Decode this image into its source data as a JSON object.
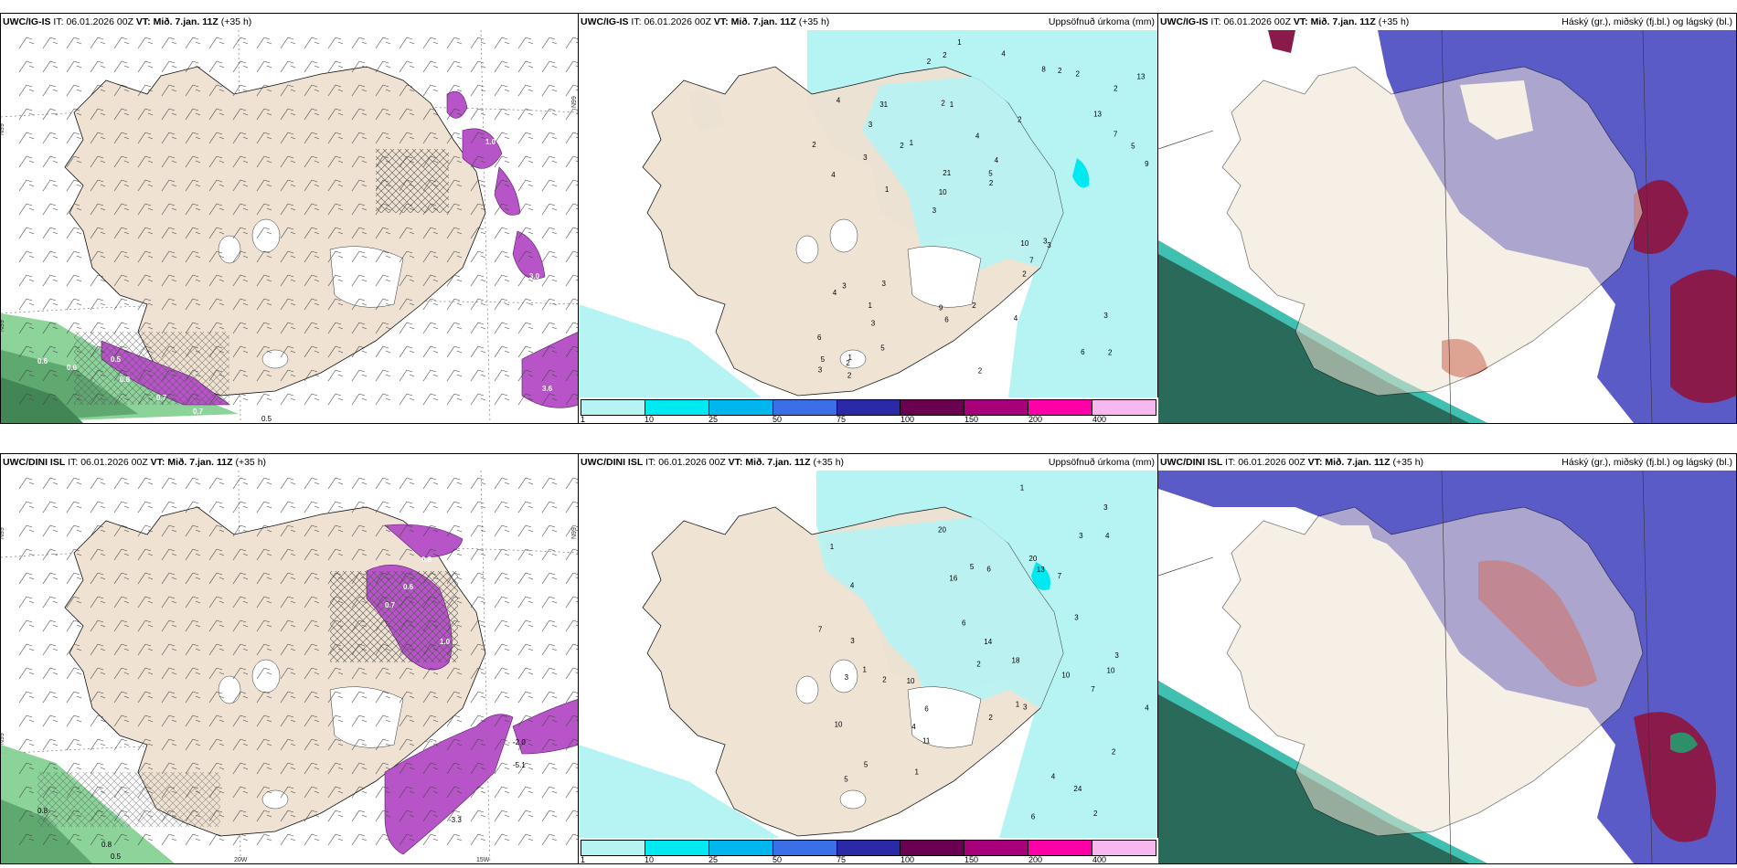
{
  "panels": [
    {
      "model": "UWC/IG-IS",
      "it_label": "IT:",
      "it": "06.01.2026 00Z",
      "vt_label": "VT:",
      "vt": "Mið. 7.jan. 11Z",
      "lead": "(+35 h)",
      "right": ""
    },
    {
      "model": "UWC/IG-IS",
      "it_label": "IT:",
      "it": "06.01.2026 00Z",
      "vt_label": "VT:",
      "vt": "Mið. 7.jan. 11Z",
      "lead": "(+35 h)",
      "right": "Uppsöfnuð úrkoma (mm)"
    },
    {
      "model": "UWC/IG-IS",
      "it_label": "IT:",
      "it": "06.01.2026 00Z",
      "vt_label": "VT:",
      "vt": "Mið. 7.jan. 11Z",
      "lead": "(+35 h)",
      "right": "Háský (gr.), miðský (fj.bl.) og lágský (bl.)"
    },
    {
      "model": "UWC/DINI ISL",
      "it_label": "IT:",
      "it": "06.01.2026 00Z",
      "vt_label": "VT:",
      "vt": "Mið. 7.jan. 11Z",
      "lead": "(+35 h)",
      "right": ""
    },
    {
      "model": "UWC/DINI ISL",
      "it_label": "IT:",
      "it": "06.01.2026 00Z",
      "vt_label": "VT:",
      "vt": "Mið. 7.jan. 11Z",
      "lead": "(+35 h)",
      "right": "Uppsöfnuð úrkoma (mm)"
    },
    {
      "model": "UWC/DINI ISL",
      "it_label": "IT:",
      "it": "06.01.2026 00Z",
      "vt_label": "VT:",
      "vt": "Mið. 7.jan. 11Z",
      "lead": "(+35 h)",
      "right": "Háský (gr.), miðský (fj.bl.) og lágský (bl.)"
    }
  ],
  "legend": {
    "ticks": [
      "1",
      "10",
      "25",
      "50",
      "75",
      "100",
      "150",
      "200",
      "400"
    ],
    "colors": [
      "#b6f4f4",
      "#00e8f0",
      "#00b6ee",
      "#3a6fe8",
      "#2a2aa8",
      "#6a0050",
      "#a8007a",
      "#ff00a8",
      "#f7b8f0"
    ]
  },
  "axis_labels": {
    "lat": "N99",
    "lon_a": "20W",
    "lon_b": "15W"
  },
  "precip_top": [
    "2",
    "4",
    "2",
    "3",
    "2",
    "1",
    "2",
    "4",
    "3",
    "1",
    "6",
    "3",
    "1",
    "4",
    "3",
    "4",
    "2",
    "9",
    "10",
    "7",
    "10",
    "9",
    "21",
    "31",
    "8",
    "3",
    "6",
    "3",
    "3",
    "2",
    "2",
    "3",
    "2",
    "5",
    "5",
    "5",
    "5",
    "6",
    "2",
    "4",
    "13",
    "13",
    "7",
    "4",
    "1",
    "2",
    "3",
    "2",
    "2",
    "1",
    "1",
    "2",
    "3",
    "2",
    "2",
    "4",
    "2"
  ],
  "precip_bottom": [
    "2",
    "1",
    "1",
    "1",
    "2",
    "4",
    "5",
    "10",
    "7",
    "5",
    "13",
    "24",
    "11",
    "20",
    "18",
    "10",
    "10",
    "14",
    "7",
    "5",
    "3",
    "6",
    "3",
    "4",
    "3",
    "3",
    "2",
    "2",
    "6",
    "4",
    "3",
    "3",
    "4",
    "20",
    "16",
    "7",
    "10",
    "4",
    "3",
    "6",
    "6",
    "2",
    "1",
    "1"
  ],
  "wind_labels_top": [
    "0.6",
    "0.6",
    "0.5",
    "0.8",
    "0.7",
    "0.7",
    "0.5",
    "3.6",
    "3.0",
    "1.0"
  ],
  "wind_labels_bottom": [
    "0.8",
    "0.7",
    "1.0",
    "0.6",
    "0.8",
    "-2.0",
    "-5.1",
    "-3.3",
    "0.8",
    "0.5"
  ]
}
